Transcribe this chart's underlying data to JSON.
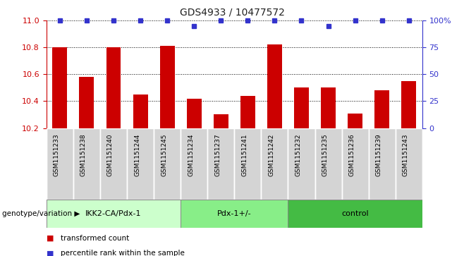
{
  "title": "GDS4933 / 10477572",
  "samples": [
    "GSM1151233",
    "GSM1151238",
    "GSM1151240",
    "GSM1151244",
    "GSM1151245",
    "GSM1151234",
    "GSM1151237",
    "GSM1151241",
    "GSM1151242",
    "GSM1151232",
    "GSM1151235",
    "GSM1151236",
    "GSM1151239",
    "GSM1151243"
  ],
  "bar_values": [
    10.8,
    10.58,
    10.8,
    10.45,
    10.81,
    10.42,
    10.3,
    10.44,
    10.82,
    10.5,
    10.5,
    10.31,
    10.48,
    10.55
  ],
  "percentile_values": [
    100,
    100,
    100,
    100,
    100,
    95,
    100,
    100,
    100,
    100,
    95,
    100,
    100,
    100
  ],
  "bar_color": "#cc0000",
  "percentile_color": "#3333cc",
  "ylim_left": [
    10.2,
    11.0
  ],
  "ylim_right": [
    0,
    100
  ],
  "y_ticks_left": [
    10.2,
    10.4,
    10.6,
    10.8,
    11.0
  ],
  "y_ticks_right": [
    0,
    25,
    50,
    75,
    100
  ],
  "y_tick_labels_right": [
    "0",
    "25",
    "50",
    "75",
    "100%"
  ],
  "groups": [
    {
      "label": "IKK2-CA/Pdx-1",
      "start": 0,
      "end": 5,
      "color": "#ccffcc"
    },
    {
      "label": "Pdx-1+/-",
      "start": 5,
      "end": 9,
      "color": "#88ee88"
    },
    {
      "label": "control",
      "start": 9,
      "end": 14,
      "color": "#44bb44"
    }
  ],
  "group_label_prefix": "genotype/variation",
  "legend_items": [
    {
      "label": "transformed count",
      "color": "#cc0000"
    },
    {
      "label": "percentile rank within the sample",
      "color": "#3333cc"
    }
  ],
  "dotted_line_color": "#000000",
  "tick_color_left": "#cc0000",
  "tick_color_right": "#3333cc",
  "sample_bg_color": "#d4d4d4",
  "sample_border_color": "#aaaaaa"
}
